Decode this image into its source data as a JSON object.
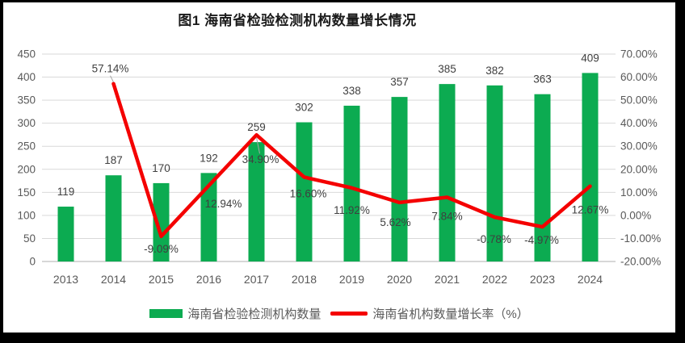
{
  "title": "图1 海南省检验检测机构数量增长情况",
  "chart_data": {
    "type": "bar+line",
    "title": "图1 海南省检验检测机构数量增长情况",
    "categories": [
      "2013",
      "2014",
      "2015",
      "2016",
      "2017",
      "2018",
      "2019",
      "2020",
      "2021",
      "2022",
      "2023",
      "2024"
    ],
    "series": [
      {
        "name": "海南省检验检测机构数量",
        "type": "bar",
        "axis": "left",
        "color": "#0cab51",
        "values": [
          119,
          187,
          170,
          192,
          259,
          302,
          338,
          357,
          385,
          382,
          363,
          409
        ],
        "labels": [
          "119",
          "187",
          "170",
          "192",
          "259",
          "302",
          "338",
          "357",
          "385",
          "382",
          "363",
          "409"
        ]
      },
      {
        "name": "海南省机构数量增长率（%）",
        "type": "line",
        "axis": "right",
        "color": "#f40000",
        "values": [
          null,
          57.14,
          -9.09,
          12.94,
          34.9,
          16.6,
          11.92,
          5.62,
          7.84,
          -0.78,
          -4.97,
          12.67
        ],
        "labels": [
          "",
          "57.14%",
          "-9.09%",
          "12.94%",
          "34.90%",
          "16.60%",
          "11.92%",
          "5.62%",
          "7.84%",
          "-0.78%",
          "-4.97%",
          "12.67%"
        ]
      }
    ],
    "left_axis": {
      "min": 0,
      "max": 450,
      "step": 50,
      "ticks": [
        "450",
        "400",
        "350",
        "300",
        "250",
        "200",
        "150",
        "100",
        "50",
        "0"
      ]
    },
    "right_axis": {
      "min": -20,
      "max": 70,
      "step": 10,
      "ticks": [
        "70.00%",
        "60.00%",
        "50.00%",
        "40.00%",
        "30.00%",
        "20.00%",
        "10.00%",
        "0.00%",
        "-10.00%",
        "-20.00%"
      ]
    },
    "grid": true,
    "legend_position": "bottom"
  },
  "colors": {
    "bar_green": "#0cab51",
    "line_red": "#f40000",
    "axis_text": "#595959",
    "data_label": "#3f3f3f",
    "gridline": "#d9d9d9"
  }
}
